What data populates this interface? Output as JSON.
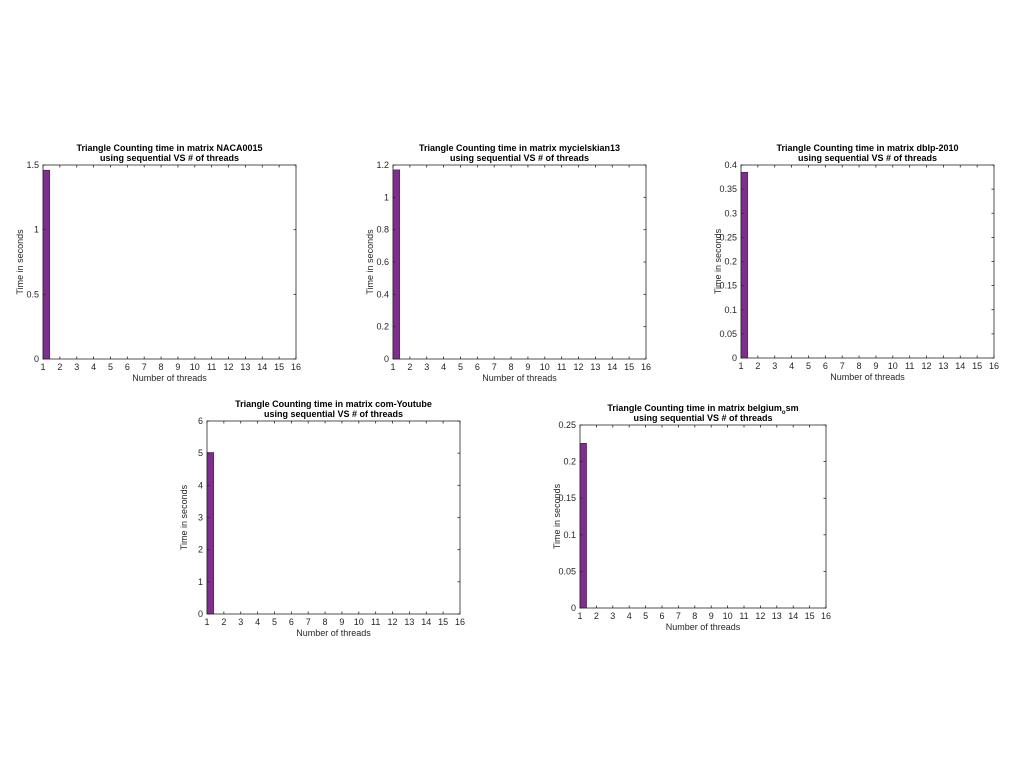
{
  "colors": {
    "bar_fill": "#7e2f8e",
    "bar_edge": "#4b1a56",
    "axis": "#262626"
  },
  "chart_data": [
    {
      "type": "bar",
      "title": "Triangle Counting time in matrix NACA0015",
      "subtitle": "using sequential VS # of threads",
      "xlabel": "Number of threads",
      "ylabel": "Time in seconds",
      "xlim": [
        1,
        16
      ],
      "ylim": [
        0,
        1.5
      ],
      "x_ticks": [
        1,
        2,
        3,
        4,
        5,
        6,
        7,
        8,
        9,
        10,
        11,
        12,
        13,
        14,
        15,
        16
      ],
      "y_ticks": [
        0,
        0.5,
        1,
        1.5
      ],
      "y_tick_labels": [
        "0",
        "0.5",
        "1",
        "1.5"
      ],
      "series": [
        {
          "x": [
            1
          ],
          "values": [
            1.46
          ]
        }
      ]
    },
    {
      "type": "bar",
      "title": "Triangle Counting time in matrix mycielskian13",
      "subtitle": "using sequential VS # of threads",
      "xlabel": "Number of threads",
      "ylabel": "Time in seconds",
      "xlim": [
        1,
        16
      ],
      "ylim": [
        0,
        1.2
      ],
      "x_ticks": [
        1,
        2,
        3,
        4,
        5,
        6,
        7,
        8,
        9,
        10,
        11,
        12,
        13,
        14,
        15,
        16
      ],
      "y_ticks": [
        0,
        0.2,
        0.4,
        0.6,
        0.8,
        1,
        1.2
      ],
      "y_tick_labels": [
        "0",
        "0.2",
        "0.4",
        "0.6",
        "0.8",
        "1",
        "1.2"
      ],
      "series": [
        {
          "x": [
            1
          ],
          "values": [
            1.17
          ]
        }
      ]
    },
    {
      "type": "bar",
      "title": "Triangle Counting time in matrix dblp-2010",
      "subtitle": "using sequential VS # of threads",
      "xlabel": "Number of threads",
      "ylabel": "Time in seconds",
      "xlim": [
        1,
        16
      ],
      "ylim": [
        0,
        0.4
      ],
      "x_ticks": [
        1,
        2,
        3,
        4,
        5,
        6,
        7,
        8,
        9,
        10,
        11,
        12,
        13,
        14,
        15,
        16
      ],
      "y_ticks": [
        0,
        0.05,
        0.1,
        0.15,
        0.2,
        0.25,
        0.3,
        0.35,
        0.4
      ],
      "y_tick_labels": [
        "0",
        "0.05",
        "0.1",
        "0.15",
        "0.2",
        "0.25",
        "0.3",
        "0.35",
        "0.4"
      ],
      "series": [
        {
          "x": [
            1
          ],
          "values": [
            0.385
          ]
        }
      ]
    },
    {
      "type": "bar",
      "title": "Triangle Counting time in matrix com-Youtube",
      "subtitle": "using sequential VS # of threads",
      "xlabel": "Number of threads",
      "ylabel": "Time in seconds",
      "xlim": [
        1,
        16
      ],
      "ylim": [
        0,
        6
      ],
      "x_ticks": [
        1,
        2,
        3,
        4,
        5,
        6,
        7,
        8,
        9,
        10,
        11,
        12,
        13,
        14,
        15,
        16
      ],
      "y_ticks": [
        0,
        1,
        2,
        3,
        4,
        5,
        6
      ],
      "y_tick_labels": [
        "0",
        "1",
        "2",
        "3",
        "4",
        "5",
        "6"
      ],
      "series": [
        {
          "x": [
            1
          ],
          "values": [
            5.02
          ]
        }
      ]
    },
    {
      "type": "bar",
      "title": "Triangle Counting time in matrix belgium",
      "title_subscript": "o",
      "title_suffix": "sm",
      "subtitle": "using sequential VS # of threads",
      "xlabel": "Number of threads",
      "ylabel": "Time in seconds",
      "xlim": [
        1,
        16
      ],
      "ylim": [
        0,
        0.25
      ],
      "x_ticks": [
        1,
        2,
        3,
        4,
        5,
        6,
        7,
        8,
        9,
        10,
        11,
        12,
        13,
        14,
        15,
        16
      ],
      "y_ticks": [
        0,
        0.05,
        0.1,
        0.15,
        0.2,
        0.25
      ],
      "y_tick_labels": [
        "0",
        "0.05",
        "0.1",
        "0.15",
        "0.2",
        "0.25"
      ],
      "series": [
        {
          "x": [
            1
          ],
          "values": [
            0.225
          ]
        }
      ]
    }
  ]
}
